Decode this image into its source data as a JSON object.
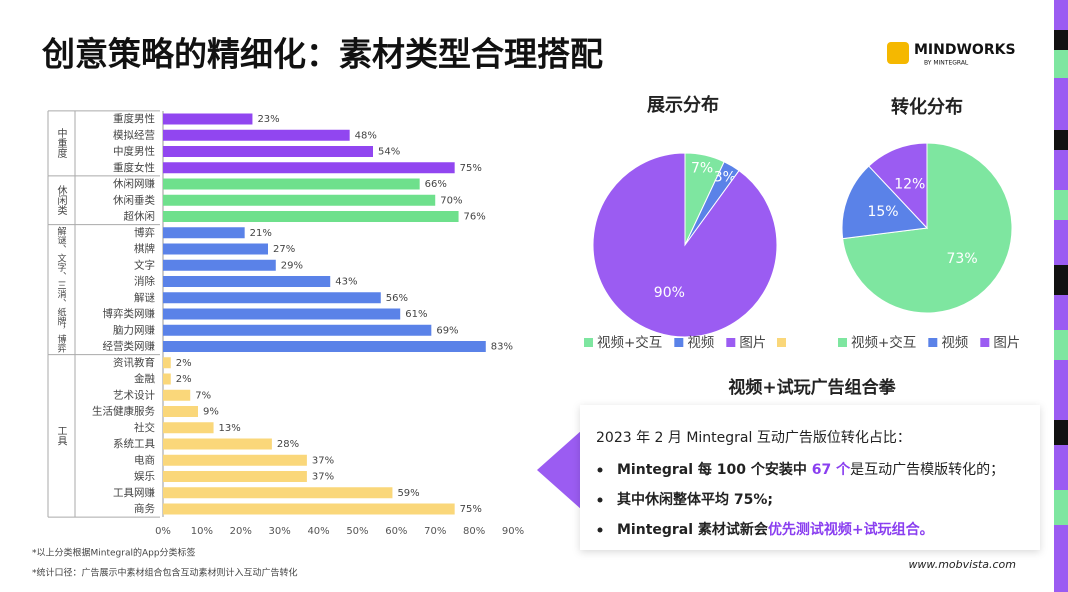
{
  "header": {
    "title": "创意策略的精细化：素材类型合理搭配",
    "logo": "MINDWORKS",
    "logo_sub": "BY MINTEGRAL"
  },
  "chart_data": [
    {
      "type": "bar",
      "orientation": "horizontal",
      "series": [
        {
          "name": "中重度",
          "color": "#9146f0",
          "categories": [
            "重度男性",
            "模拟经营",
            "中度男性",
            "重度女性"
          ],
          "values": [
            23,
            48,
            54,
            75
          ],
          "value_labels": [
            "23%",
            "48%",
            "54%",
            "75%"
          ]
        },
        {
          "name": "休闲类",
          "color": "#6ee08c",
          "categories": [
            "休闲网赚",
            "休闲垂类",
            "超休闲"
          ],
          "values": [
            66,
            70,
            76
          ],
          "value_labels": [
            "66%",
            "70%",
            "76%"
          ]
        },
        {
          "name": "解谜、文字、三消、纸牌，博弈",
          "color": "#5a82e8",
          "categories": [
            "博弈",
            "棋牌",
            "文字",
            "消除",
            "解谜",
            "博弈类网赚",
            "脑力网赚",
            "经营类网赚"
          ],
          "values": [
            21,
            27,
            29,
            43,
            56,
            61,
            69,
            83
          ],
          "value_labels": [
            "21%",
            "27%",
            "29%",
            "43%",
            "56%",
            "61%",
            "69%",
            "83%"
          ]
        },
        {
          "name": "工具",
          "color": "#fad77a",
          "categories": [
            "资讯教育",
            "金融",
            "艺术设计",
            "生活健康服务",
            "社交",
            "系统工具",
            "电商",
            "娱乐",
            "工具网赚",
            "商务"
          ],
          "values": [
            2,
            2,
            7,
            9,
            13,
            28,
            37,
            37,
            59,
            75
          ],
          "value_labels": [
            "2%",
            "2%",
            "7%",
            "9%",
            "13%",
            "28%",
            "37%",
            "37%",
            "59%",
            "75%"
          ]
        }
      ],
      "xlim": [
        0,
        90
      ],
      "xticks": [
        {
          "value": 0,
          "label": "0%"
        },
        {
          "value": 10,
          "label": "10%"
        },
        {
          "value": 20,
          "label": "20%"
        },
        {
          "value": 30,
          "label": "30%"
        },
        {
          "value": 40,
          "label": "40%"
        },
        {
          "value": 50,
          "label": "50%"
        },
        {
          "value": 60,
          "label": "60%"
        },
        {
          "value": 70,
          "label": "70%"
        },
        {
          "value": 80,
          "label": "80%"
        },
        {
          "value": 90,
          "label": "90%"
        }
      ]
    },
    {
      "type": "pie",
      "title": "展示分布",
      "categories": [
        "视频+交互",
        "视频",
        "图片"
      ],
      "values": [
        7,
        3,
        90
      ],
      "value_labels": [
        "7%",
        "3%",
        "90%"
      ],
      "colors": [
        "#7ee6a0",
        "#5a82e8",
        "#9b5cf2"
      ]
    },
    {
      "type": "pie",
      "title": "转化分布",
      "categories": [
        "视频+交互",
        "视频",
        "图片"
      ],
      "values": [
        73,
        15,
        12
      ],
      "value_labels": [
        "73%",
        "15%",
        "12%"
      ],
      "colors": [
        "#7ee6a0",
        "#5a82e8",
        "#9b5cf2"
      ]
    }
  ],
  "panel": {
    "title": "视频+试玩广告组合拳",
    "intro": "2023 年 2 月 Mintegral 互动广告版位转化占比：",
    "bullets": [
      [
        "Mintegral 每 100 个安装中 ",
        "67 个",
        "是互动广告模版转化的；"
      ],
      [
        "其中休闲整体平均 75%;"
      ],
      [
        "Mintegral 素材试新会",
        "优先测试视频+试玩组合。"
      ]
    ]
  },
  "footnotes": [
    "*以上分类根据Mintegral的App分类标签",
    "*统计口径：广告展示中素材组合包含互动素材则计入互动广告转化"
  ],
  "url": "www.mobvista.com"
}
